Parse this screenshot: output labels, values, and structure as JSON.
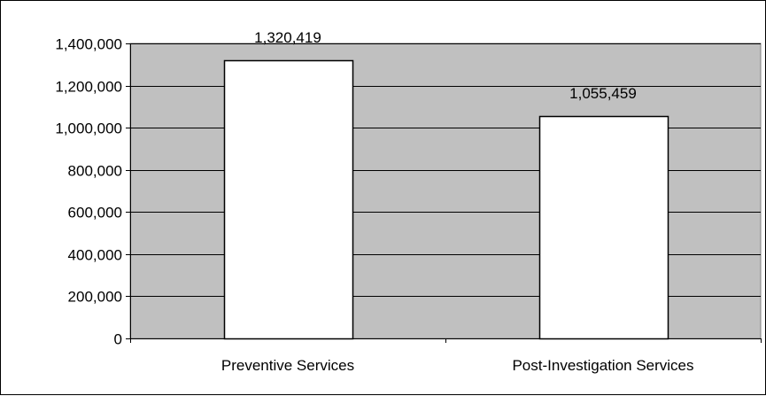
{
  "chart_data": {
    "type": "bar",
    "title": "",
    "xlabel": "",
    "ylabel": "",
    "categories": [
      "Preventive Services",
      "Post-Investigation Services"
    ],
    "values": [
      1320419,
      1055459
    ],
    "data_labels": [
      "1,320,419",
      "1,055,459"
    ],
    "ylim": [
      0,
      1400000
    ],
    "yticks": [
      0,
      200000,
      400000,
      600000,
      800000,
      1000000,
      1200000,
      1400000
    ],
    "ytick_labels": [
      "0",
      "200,000",
      "400,000",
      "600,000",
      "800,000",
      "1,000,000",
      "1,200,000",
      "1,400,000"
    ],
    "grid": true,
    "legend": "none",
    "colors": {
      "plot_background": "#c0c0c0",
      "bar_fill": "#ffffff",
      "bar_stroke": "#000000",
      "gridline": "#000000"
    }
  }
}
